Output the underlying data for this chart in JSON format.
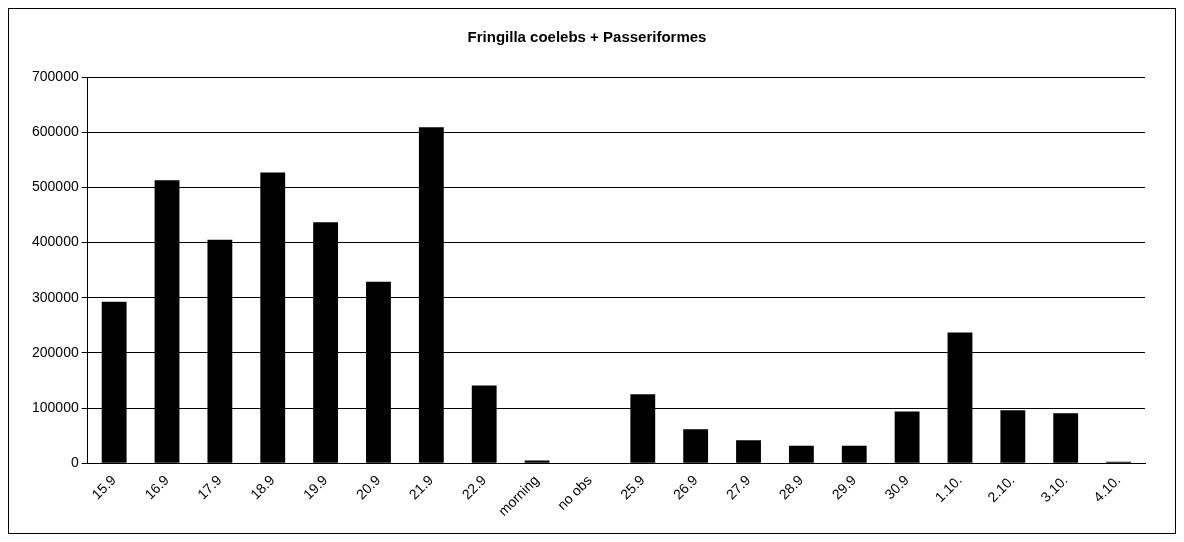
{
  "chart_data": {
    "type": "bar",
    "title": "Fringilla coelebs + Passeriformes",
    "categories": [
      "15.9",
      "16.9",
      "17.9",
      "18.9",
      "19.9",
      "20.9",
      "21.9",
      "22.9",
      "morning",
      "no obs",
      "25.9",
      "26.9",
      "27.9",
      "28.9",
      "29.9",
      "30.9",
      "1.10.",
      "2.10.",
      "3.10.",
      "4.10."
    ],
    "values": [
      293000,
      513000,
      405000,
      527000,
      437000,
      329000,
      609000,
      141000,
      5000,
      0,
      125000,
      62000,
      42000,
      32000,
      32000,
      94000,
      237000,
      96000,
      91000,
      3000
    ],
    "color": "#000000",
    "ylim": [
      0,
      700000
    ],
    "yticks": [
      0,
      100000,
      200000,
      300000,
      400000,
      500000,
      600000,
      700000
    ],
    "grid": "y",
    "legend": false
  }
}
